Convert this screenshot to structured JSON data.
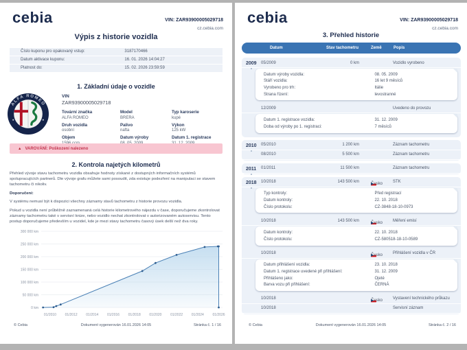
{
  "colors": {
    "brand_navy": "#1d2c4e",
    "table_header_blue": "#3a74b3",
    "row_bg": "#ecf1f8",
    "warning_bg": "#f8c6d1",
    "warning_text": "#c2344d",
    "chart_line": "#4a80b5",
    "chart_fill": "#bcd9ee"
  },
  "page1": {
    "header": {
      "logo": "cebia",
      "vin": "VIN: ZAR93900005029718",
      "site": "cz.cebia.com"
    },
    "title": "Výpis z historie vozidla",
    "coupon_rows": [
      {
        "label": "Číslo kuponu pro opakovaný vstup:",
        "value": "3187170466"
      },
      {
        "label": "Datum aktivace kuponu:",
        "value": "16. 01. 2026 14:04:27"
      },
      {
        "label": "Platnost do:",
        "value": "15. 02. 2026 23:59:59"
      }
    ],
    "section1": {
      "title": "1. Základní údaje o vozidle",
      "badge_text": "ALFA ROMEO",
      "vin_label": "VIN",
      "vin_value": "ZAR93900005029718",
      "fields": [
        {
          "label": "Tovární značka",
          "value": "ALFA ROMEO"
        },
        {
          "label": "Model",
          "value": "BRERA"
        },
        {
          "label": "Typ karoserie",
          "value": "kupé"
        },
        {
          "label": "Druh vozidla",
          "value": "osobní"
        },
        {
          "label": "Palivo",
          "value": "nafta"
        },
        {
          "label": "Výkon",
          "value": "125 kW"
        },
        {
          "label": "Objem",
          "value": "1596 ccm"
        },
        {
          "label": "Datum výroby",
          "value": "08. 05. 2009"
        },
        {
          "label": "Datum 1. registrace",
          "value": "31. 12. 2009"
        }
      ]
    },
    "warning": {
      "text": "VAROVÁNÍ: Poškození nalezeno"
    },
    "section2": {
      "title": "2. Kontrola najetých kilometrů",
      "paragraphs": [
        {
          "style": "normal",
          "text": "Přehled vývoje stavu tachometru vozidla obsahuje hodnoty získané z dostupných informačních systémů spolupracujících partnerů. Dle vývoje grafu můžete sami posoudit, zda existuje podezření na manipulaci se stavem tachometru či nikoliv."
        },
        {
          "style": "bold",
          "text": "Doporučení:"
        },
        {
          "style": "normal",
          "text": "V systému nemusí být k dispozici všechny záznamy stavů tachometru z historie provozu vozidla."
        },
        {
          "style": "normal",
          "text": "Pokud u vozidla není průběžně zaznamenaná celá historie kilometrového nájezdu v čase, doporučujeme zkontrolovat záznamy tachometru také v servisní knize, nebo vozidlo nechat zkontrolovat v autorizovaném autoservisu. Tento postup doporučujeme především u vozidel, kde je mezi stavy tachometru časový úsek delší než dva roky."
        }
      ]
    },
    "footer": {
      "copyright": "© Cebia",
      "generated": "Dokument vygenerován 16.01.2026 14:05",
      "page": "Stránka č. 1 / 16"
    }
  },
  "chart_data": {
    "type": "area",
    "title": "",
    "xlabel": "",
    "ylabel": "",
    "ylim": [
      0,
      300000
    ],
    "grid": true,
    "y_ticks": [
      "0 km",
      "50 000 km",
      "100 000 km",
      "150 000 km",
      "200 000 km",
      "250 000 km",
      "300 000 km"
    ],
    "x_ticks": [
      "01/2010",
      "01/2012",
      "01/2014",
      "01/2016",
      "01/2018",
      "01/2020",
      "01/2022",
      "01/2024",
      "01/2026"
    ],
    "points": [
      {
        "x": "05/2009",
        "y": 0
      },
      {
        "x": "05/2010",
        "y": 1200
      },
      {
        "x": "08/2010",
        "y": 5500
      },
      {
        "x": "01/2011",
        "y": 11500
      },
      {
        "x": "10/2018",
        "y": 143500
      },
      {
        "x": "01/2020",
        "y": 175000
      },
      {
        "x": "01/2022",
        "y": 207000
      },
      {
        "x": "09/2024",
        "y": 238000
      },
      {
        "x": "12/2025",
        "y": 240500
      },
      {
        "x": "01/2026",
        "y": 240500
      },
      {
        "x": "01/2026",
        "y": 0
      }
    ],
    "line_color": "#4a80b5",
    "fill_color": "#bcd9ee"
  },
  "page2": {
    "header": {
      "logo": "cebia",
      "vin": "VIN: ZAR93900005029718",
      "site": "cz.cebia.com"
    },
    "title": "3. Přehled historie",
    "table": {
      "columns": [
        "Datum",
        "Stav tachometru",
        "Země",
        "Popis"
      ],
      "groups": [
        {
          "year": "2009",
          "entries": [
            {
              "date": "05/2009",
              "odo": "0 km",
              "country": "",
              "desc": "Vozidlo vyrobeno",
              "details": [
                [
                  "Datum výroby vozidla:",
                  "08. 05. 2009"
                ],
                [
                  "Stáří vozidla:",
                  "16 let 9 měsíců"
                ],
                [
                  "Vyrobeno pro trh:",
                  "Itálie"
                ],
                [
                  "Strana řízení:",
                  "levostranné"
                ]
              ]
            },
            {
              "date": "12/2009",
              "odo": "",
              "country": "",
              "desc": "Uvedeno do provozu",
              "details": [
                [
                  "Datum 1. registrace vozidla:",
                  "31. 12. 2009"
                ],
                [
                  "Doba od výroby po 1. registraci:",
                  "7 měsíců"
                ]
              ]
            }
          ]
        },
        {
          "year": "2010",
          "entries": [
            {
              "date": "05/2010",
              "odo": "1 200 km",
              "country": "",
              "desc": "Záznam tachometru"
            },
            {
              "date": "08/2010",
              "odo": "5 500 km",
              "country": "",
              "desc": "Záznam tachometru"
            }
          ]
        },
        {
          "year": "2011",
          "entries": [
            {
              "date": "01/2011",
              "odo": "11 500 km",
              "country": "",
              "desc": "Záznam tachometru"
            }
          ]
        },
        {
          "year": "2018",
          "entries": [
            {
              "date": "10/2018",
              "odo": "143 500 km",
              "country": "Česko",
              "desc": "STK",
              "details": [
                [
                  "Typ kontroly:",
                  "Před registrací"
                ],
                [
                  "Datum kontroly:",
                  "22. 10. 2018"
                ],
                [
                  "Číslo protokolu:",
                  "CZ-3848-18-10-0973"
                ]
              ]
            },
            {
              "date": "10/2018",
              "odo": "143 500 km",
              "country": "Česko",
              "desc": "Měření emisí",
              "details": [
                [
                  "Datum kontroly:",
                  "22. 10. 2018"
                ],
                [
                  "Číslo protokolu:",
                  "CZ-580518-18-10-0589"
                ]
              ]
            },
            {
              "date": "10/2018",
              "odo": "",
              "country": "Česko",
              "desc": "Přihlášení vozidla v ČR",
              "details": [
                [
                  "Datum přihlášení vozidla:",
                  "23. 10. 2018"
                ],
                [
                  "Datum 1. registrace uvedené při přihlášení:",
                  "31. 12. 2009"
                ],
                [
                  "Přihlášeno jako:",
                  "Ojeté"
                ],
                [
                  "Barva vozu při přihlášení:",
                  "ČERNÁ"
                ]
              ]
            },
            {
              "date": "10/2018",
              "odo": "",
              "country": "Česko",
              "desc": "Vystavení technického průkazu"
            },
            {
              "date": "10/2018",
              "odo": "",
              "country": "",
              "desc": "Servisní záznam"
            }
          ]
        }
      ]
    },
    "footer": {
      "copyright": "© Cebia",
      "generated": "Dokument vygenerován 16.01.2026 14:05",
      "page": "Stránka č. 2 / 16"
    }
  }
}
